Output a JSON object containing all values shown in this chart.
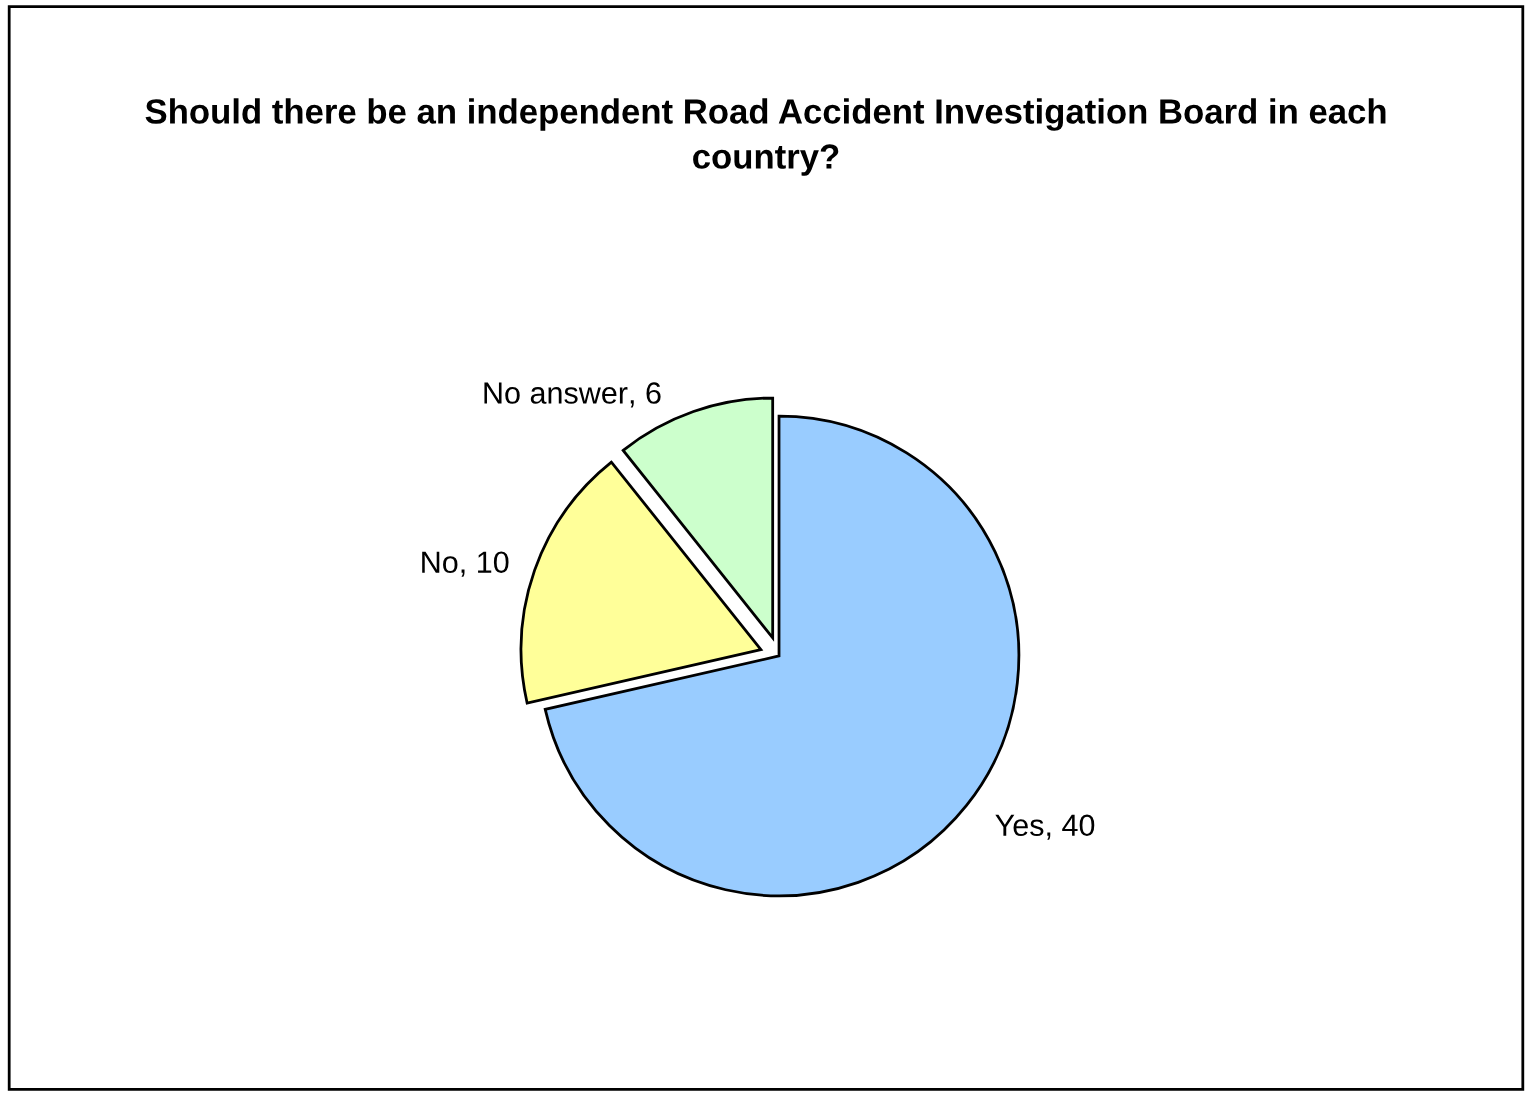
{
  "chart_data": {
    "type": "pie",
    "title": "Should there be an independent Road Accident Investigation Board in each country?",
    "categories": [
      "Yes",
      "No",
      "No answer"
    ],
    "values": [
      40,
      10,
      6
    ],
    "colors": [
      "#99ccff",
      "#ffff99",
      "#ccffcc"
    ],
    "value_labels": [
      ", 40",
      ", 10",
      ", 6"
    ],
    "legend": false
  }
}
